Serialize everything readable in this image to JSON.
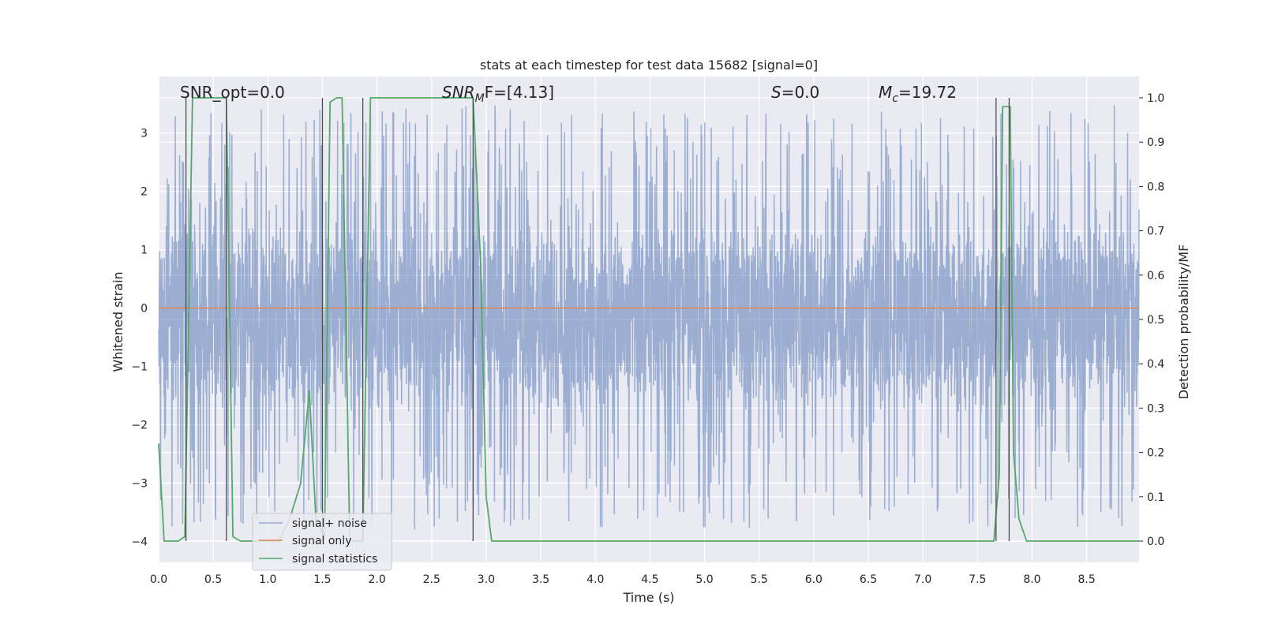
{
  "chart_data": {
    "type": "line",
    "title": "stats at each timestep for test data 15682 [signal=0]",
    "xlabel": "Time (s)",
    "ylabel_left": "Whitened strain",
    "ylabel_right": "Detection probability/MF",
    "xlim": [
      0.0,
      8.98
    ],
    "ylim_left": [
      -4.36,
      3.97
    ],
    "ylim_right": [
      -0.048,
      1.048
    ],
    "x_ticks": [
      "0.0",
      "0.5",
      "1.0",
      "1.5",
      "2.0",
      "2.5",
      "3.0",
      "3.5",
      "4.0",
      "4.5",
      "5.0",
      "5.5",
      "6.0",
      "6.5",
      "7.0",
      "7.5",
      "8.0",
      "8.5"
    ],
    "y_left_ticks": [
      "3",
      "2",
      "1",
      "0",
      "−1",
      "−2",
      "−3",
      "−4"
    ],
    "y_right_ticks": [
      "1.0",
      "0.9",
      "0.8",
      "0.7",
      "0.6",
      "0.5",
      "0.4",
      "0.3",
      "0.2",
      "0.1",
      "0.0"
    ],
    "annotations": {
      "snr_opt": "SNR_opt=0.0",
      "snr_mf_label": "SNR",
      "snr_mf_sub": "M",
      "snr_mf_value": "F=[4.13]",
      "s_label": "S",
      "s_value": "=0.0",
      "mc_label": "M",
      "mc_sub": "c",
      "mc_value": "=19.72"
    },
    "colors": {
      "noise": "#4c72b0",
      "signal": "#dd8452",
      "stats": "#55a868",
      "markers": "#4d4d4d",
      "background": "#eaeaf2",
      "grid": "#ffffff"
    },
    "series": [
      {
        "name": "signal+ noise",
        "axis": "left",
        "description": "dense whitened noise band, roughly ±1.3 core with spikes to about ±3.5",
        "core_range": [
          -1.6,
          1.3
        ],
        "extreme_range": [
          -3.9,
          3.6
        ]
      },
      {
        "name": "signal only",
        "axis": "left",
        "x": [
          0.0,
          8.98
        ],
        "y": [
          0.0,
          0.0
        ]
      },
      {
        "name": "signal statistics",
        "axis": "right",
        "x": [
          0.0,
          0.05,
          0.18,
          0.24,
          0.31,
          0.38,
          0.45,
          0.55,
          0.62,
          0.68,
          0.75,
          0.88,
          1.0,
          1.1,
          1.2,
          1.3,
          1.38,
          1.44,
          1.52,
          1.57,
          1.63,
          1.68,
          1.75,
          1.81,
          1.87,
          1.94,
          2.02,
          2.2,
          2.6,
          2.8,
          2.88,
          2.95,
          3.0,
          3.05,
          3.2,
          4.0,
          5.0,
          6.0,
          7.0,
          7.45,
          7.65,
          7.7,
          7.73,
          7.8,
          7.83,
          7.88,
          7.95,
          8.5,
          8.98
        ],
        "y": [
          0.22,
          0.0,
          0.0,
          0.01,
          1.0,
          1.0,
          1.0,
          1.0,
          1.0,
          0.01,
          0.0,
          0.0,
          0.0,
          0.0,
          0.05,
          0.13,
          0.34,
          0.05,
          0.01,
          0.99,
          1.0,
          1.0,
          0.0,
          0.0,
          0.0,
          1.0,
          1.0,
          1.0,
          1.0,
          1.0,
          1.0,
          0.62,
          0.1,
          0.0,
          0.0,
          0.0,
          0.0,
          0.0,
          0.0,
          0.0,
          0.0,
          0.15,
          0.98,
          0.98,
          0.2,
          0.05,
          0.0,
          0.0,
          0.0
        ]
      }
    ],
    "marker_lines_x": [
      0.25,
      0.62,
      1.5,
      1.87,
      2.88,
      7.67,
      7.79
    ],
    "legend": {
      "position": "lower-left",
      "entries": [
        "signal+ noise",
        "signal only",
        "signal statistics"
      ]
    }
  }
}
